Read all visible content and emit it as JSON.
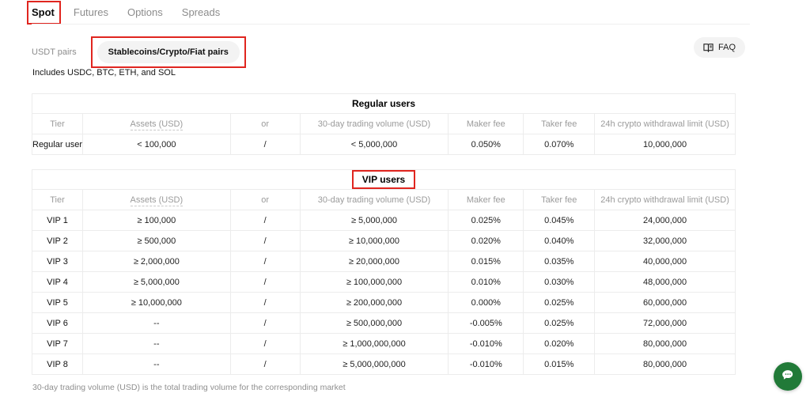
{
  "tabs": [
    "Spot",
    "Futures",
    "Options",
    "Spreads"
  ],
  "subtabs": [
    "USDT pairs",
    "Stablecoins/Crypto/Fiat pairs"
  ],
  "faq_label": "FAQ",
  "note": "Includes USDC, BTC, ETH, and SOL",
  "columns": [
    "Tier",
    "Assets (USD)",
    "or",
    "30-day trading volume (USD)",
    "Maker fee",
    "Taker fee",
    "24h crypto withdrawal limit (USD)"
  ],
  "regular_table": {
    "title": "Regular users",
    "rows": [
      [
        "Regular user",
        "< 100,000",
        "/",
        "< 5,000,000",
        "0.050%",
        "0.070%",
        "10,000,000"
      ]
    ]
  },
  "vip_table": {
    "title": "VIP users",
    "rows": [
      [
        "VIP 1",
        "≥ 100,000",
        "/",
        "≥ 5,000,000",
        "0.025%",
        "0.045%",
        "24,000,000"
      ],
      [
        "VIP 2",
        "≥ 500,000",
        "/",
        "≥ 10,000,000",
        "0.020%",
        "0.040%",
        "32,000,000"
      ],
      [
        "VIP 3",
        "≥ 2,000,000",
        "/",
        "≥ 20,000,000",
        "0.015%",
        "0.035%",
        "40,000,000"
      ],
      [
        "VIP 4",
        "≥ 5,000,000",
        "/",
        "≥ 100,000,000",
        "0.010%",
        "0.030%",
        "48,000,000"
      ],
      [
        "VIP 5",
        "≥ 10,000,000",
        "/",
        "≥ 200,000,000",
        "0.000%",
        "0.025%",
        "60,000,000"
      ],
      [
        "VIP 6",
        "--",
        "/",
        "≥ 500,000,000",
        "-0.005%",
        "0.025%",
        "72,000,000"
      ],
      [
        "VIP 7",
        "--",
        "/",
        "≥ 1,000,000,000",
        "-0.010%",
        "0.020%",
        "80,000,000"
      ],
      [
        "VIP 8",
        "--",
        "/",
        "≥ 5,000,000,000",
        "-0.010%",
        "0.015%",
        "80,000,000"
      ]
    ]
  },
  "footnote": "30-day trading volume (USD) is the total trading volume for the corresponding market",
  "colors": {
    "annotation_red": "#e0251f",
    "chat_green": "#217a38",
    "pill_bg": "#f3f3f3",
    "table_border": "#ececec"
  }
}
